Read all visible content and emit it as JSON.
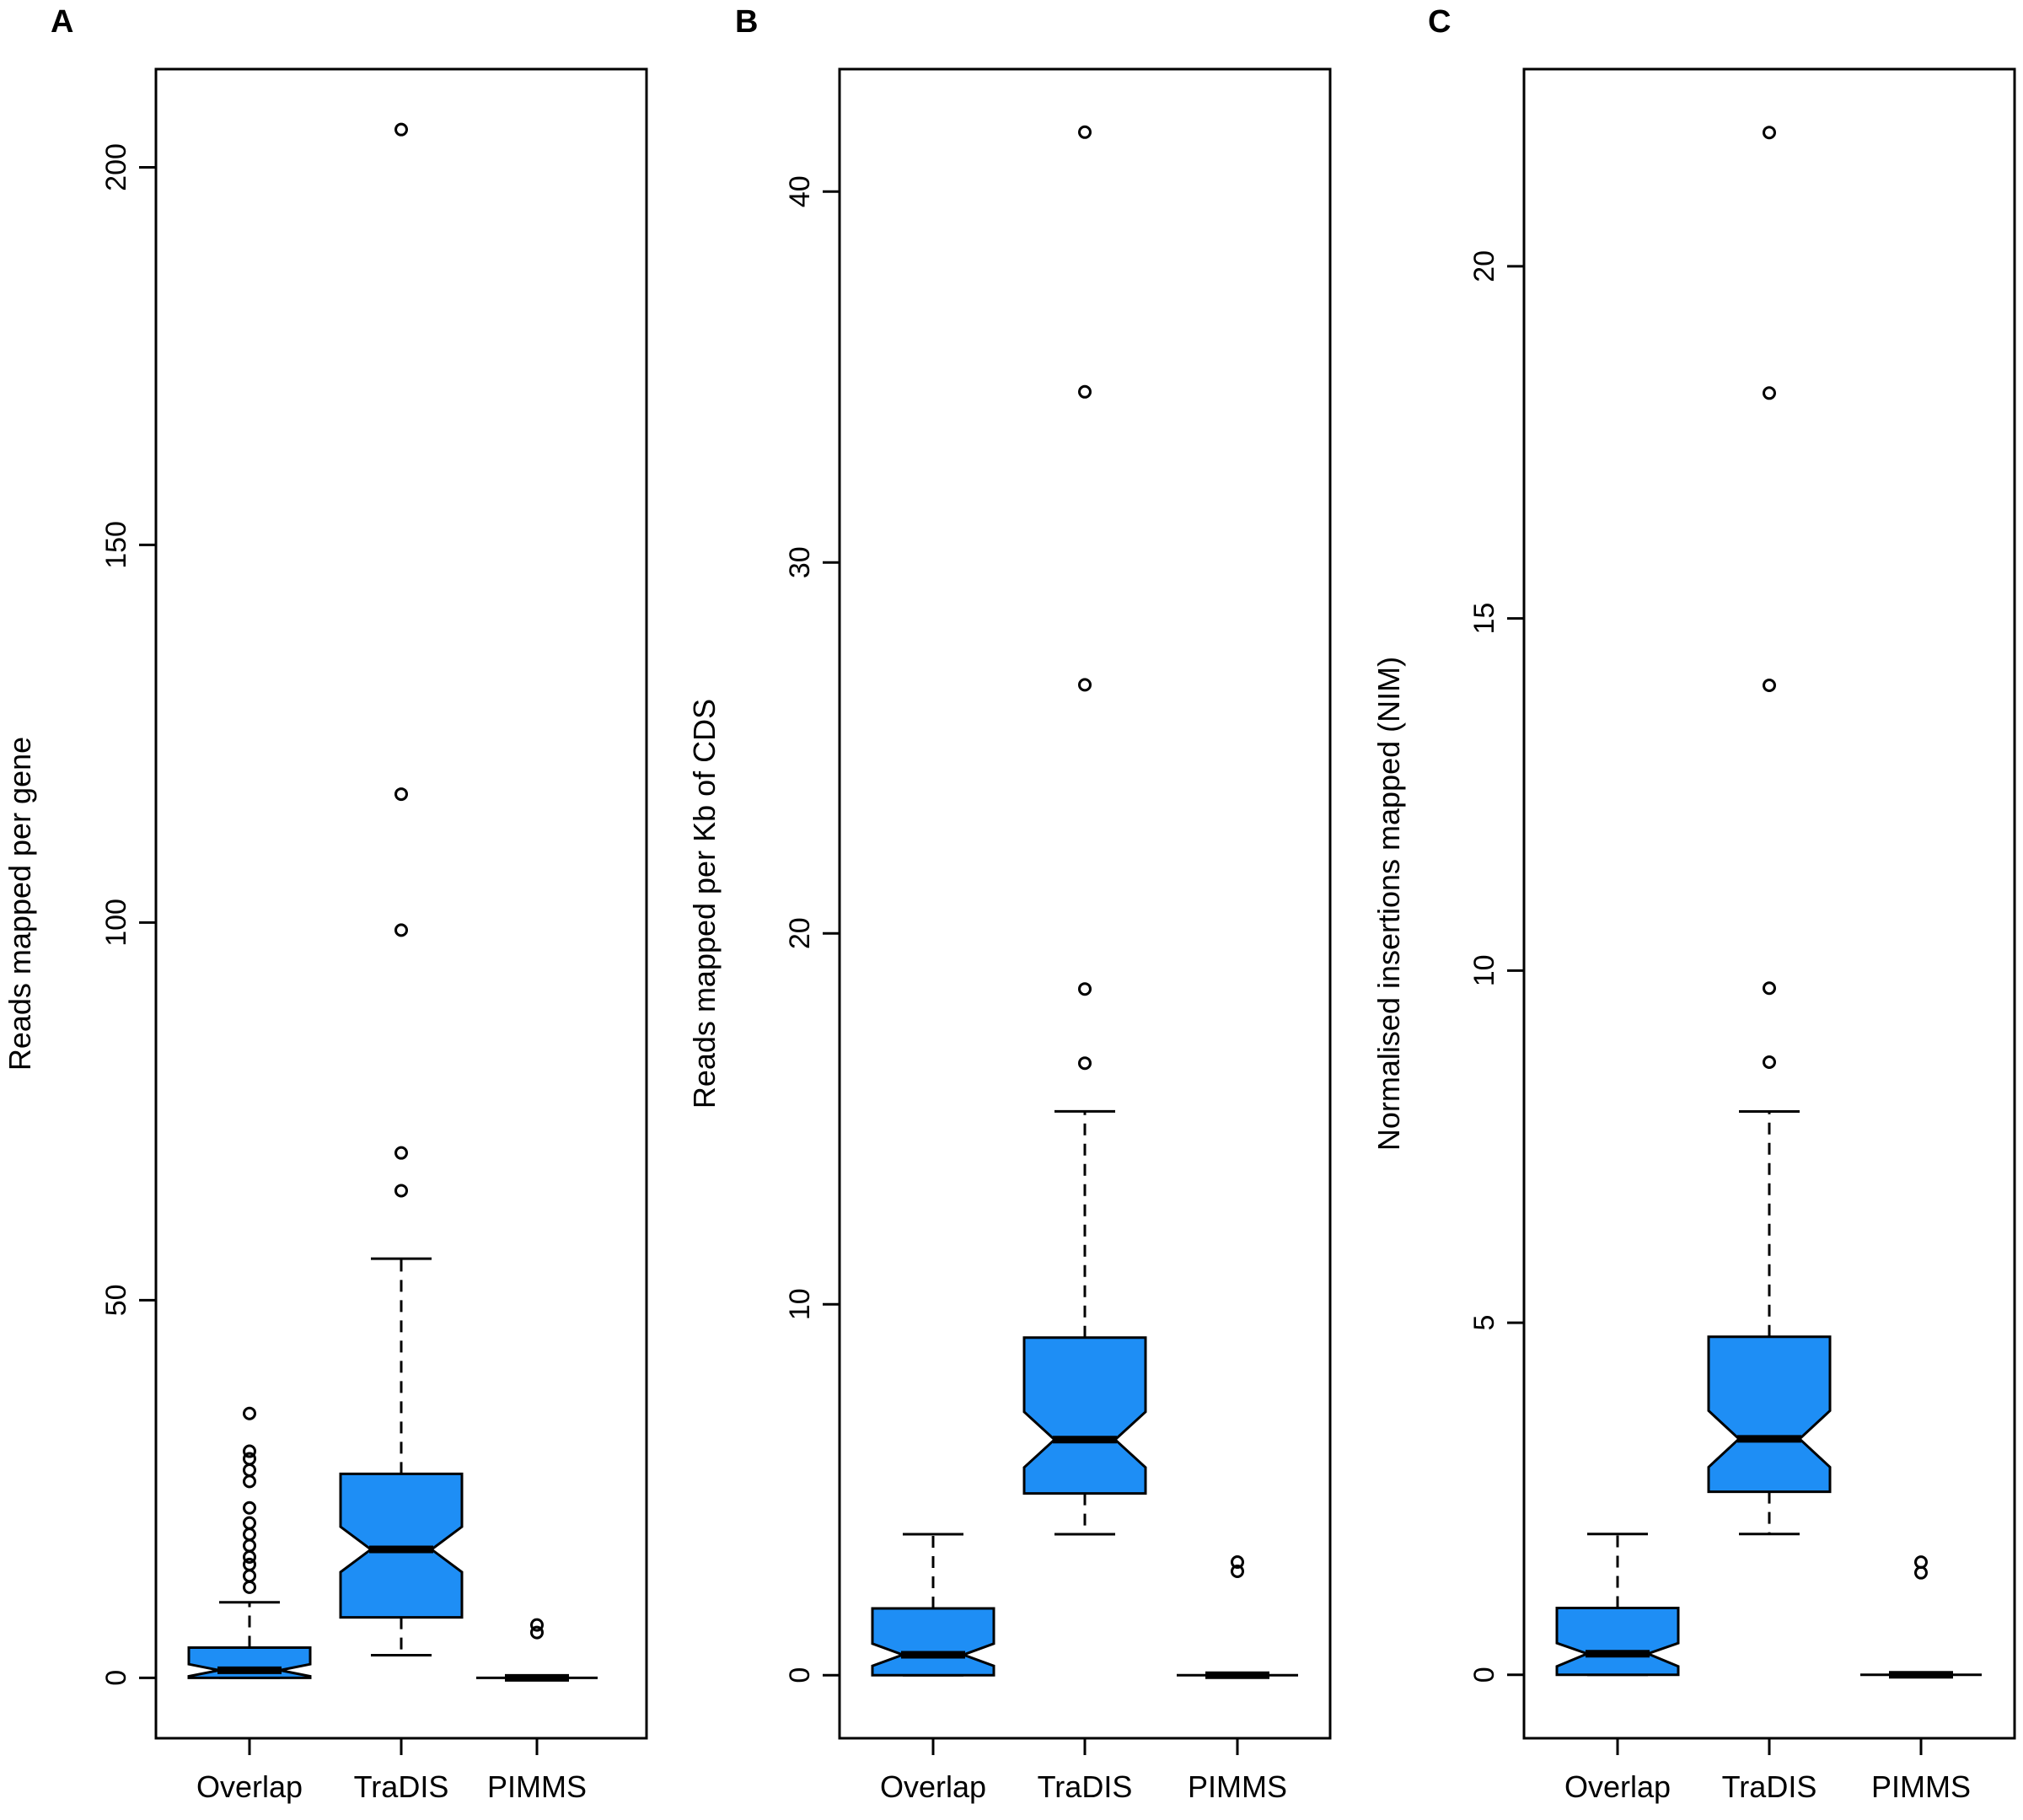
{
  "colors": {
    "box_fill": "#1E8EF5",
    "stroke": "#000000",
    "background": "#FFFFFF"
  },
  "chart_data": [
    {
      "panel": "A",
      "type": "boxplot",
      "ylabel": "Reads mapped per gene",
      "ylim": [
        -8,
        213
      ],
      "yticks": [
        0,
        50,
        100,
        150,
        200
      ],
      "categories": [
        "Overlap",
        "TraDIS",
        "PIMMS"
      ],
      "boxes": [
        {
          "category": "Overlap",
          "whisker_low": 0,
          "q1": 0,
          "median": 1,
          "q3": 4,
          "whisker_high": 10,
          "notch": [
            0.2,
            1.8
          ],
          "outliers": [
            12,
            13.5,
            15,
            16,
            17.5,
            19,
            20.5,
            22.5,
            26,
            27.5,
            29,
            30,
            35
          ]
        },
        {
          "category": "TraDIS",
          "whisker_low": 3,
          "q1": 8,
          "median": 17,
          "q3": 27,
          "whisker_high": 55.5,
          "notch": [
            14,
            20
          ],
          "outliers": [
            64.5,
            69.5,
            99,
            117,
            205
          ]
        },
        {
          "category": "PIMMS",
          "whisker_low": 0,
          "q1": 0,
          "median": 0,
          "q3": 0,
          "whisker_high": 0,
          "notch": [
            0,
            0
          ],
          "outliers": [
            6,
            7
          ]
        }
      ]
    },
    {
      "panel": "B",
      "type": "boxplot",
      "ylabel": "Reads mapped per Kb of CDS",
      "ylim": [
        -1.7,
        43.3
      ],
      "yticks": [
        0,
        10,
        20,
        30,
        40
      ],
      "categories": [
        "Overlap",
        "TraDIS",
        "PIMMS"
      ],
      "boxes": [
        {
          "category": "Overlap",
          "whisker_low": 0,
          "q1": 0,
          "median": 0.55,
          "q3": 1.8,
          "whisker_high": 3.8,
          "notch": [
            0.25,
            0.85
          ],
          "outliers": []
        },
        {
          "category": "TraDIS",
          "whisker_low": 3.8,
          "q1": 4.9,
          "median": 6.35,
          "q3": 9.1,
          "whisker_high": 15.2,
          "notch": [
            5.6,
            7.1
          ],
          "outliers": [
            16.5,
            18.5,
            26.7,
            34.6,
            41.6
          ]
        },
        {
          "category": "PIMMS",
          "whisker_low": 0,
          "q1": 0,
          "median": 0,
          "q3": 0,
          "whisker_high": 0,
          "notch": [
            0,
            0
          ],
          "outliers": [
            2.8,
            3.05
          ]
        }
      ]
    },
    {
      "panel": "C",
      "type": "boxplot",
      "ylabel": "Normalised insertions mapped (NIM)",
      "ylim": [
        -0.9,
        22.8
      ],
      "yticks": [
        0,
        5,
        10,
        15,
        20
      ],
      "categories": [
        "Overlap",
        "TraDIS",
        "PIMMS"
      ],
      "boxes": [
        {
          "category": "Overlap",
          "whisker_low": 0,
          "q1": 0,
          "median": 0.3,
          "q3": 0.95,
          "whisker_high": 2,
          "notch": [
            0.12,
            0.45
          ],
          "outliers": []
        },
        {
          "category": "TraDIS",
          "whisker_low": 2,
          "q1": 2.6,
          "median": 3.35,
          "q3": 4.8,
          "whisker_high": 8,
          "notch": [
            2.95,
            3.75
          ],
          "outliers": [
            8.7,
            9.75,
            14.05,
            18.2,
            21.9
          ]
        },
        {
          "category": "PIMMS",
          "whisker_low": 0,
          "q1": 0,
          "median": 0,
          "q3": 0,
          "whisker_high": 0,
          "notch": [
            0,
            0
          ],
          "outliers": [
            1.45,
            1.6
          ]
        }
      ]
    }
  ]
}
